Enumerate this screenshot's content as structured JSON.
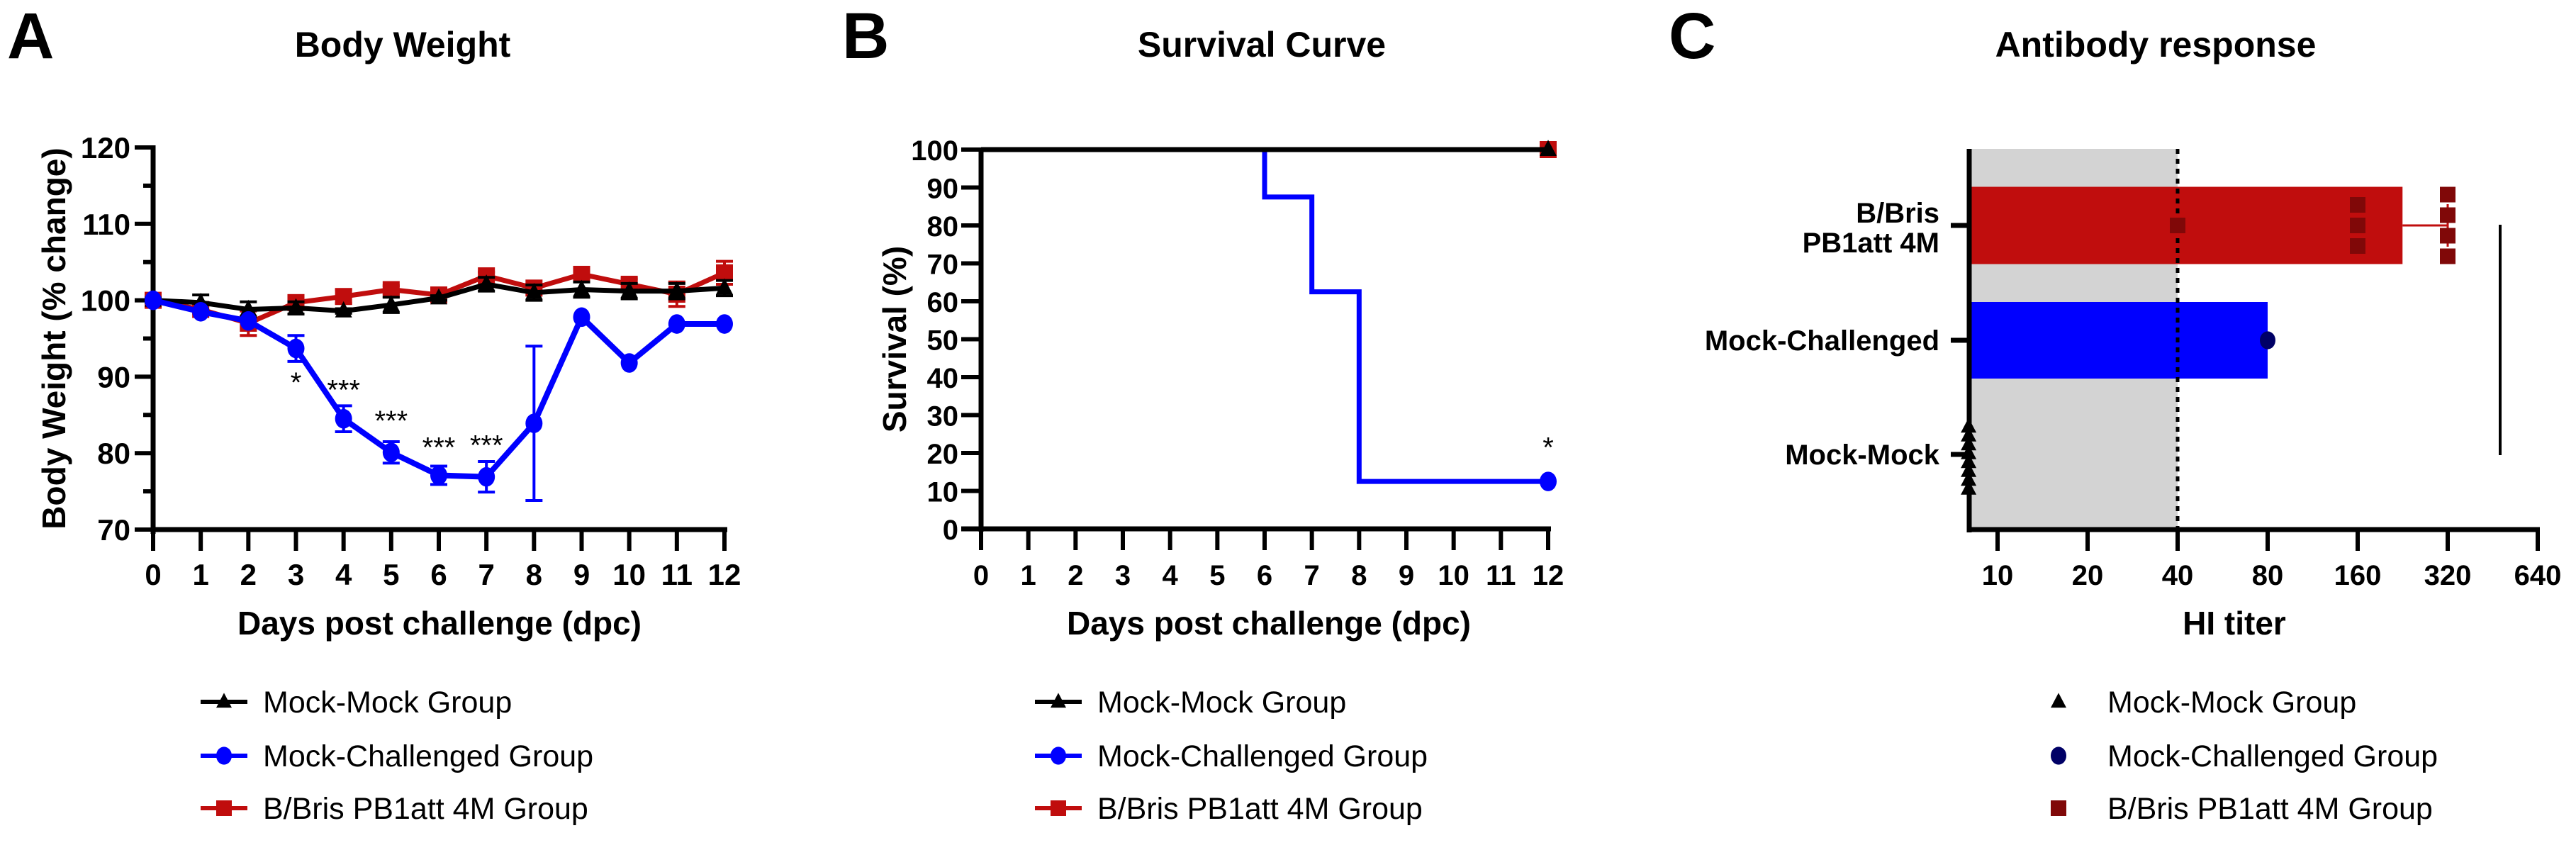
{
  "colors": {
    "mock_mock": "#000000",
    "mock_challenged": "#0000FF",
    "bbris": "#C00D0D",
    "bbris_points": "#800808",
    "mock_challenged_point": "#000066",
    "shade": "#D3D3D3"
  },
  "chart_data": [
    {
      "panel": "A",
      "type": "line",
      "title": "Body Weight",
      "xlabel": "Days post challenge (dpc)",
      "ylabel": "Body Weight (% change)",
      "xlim": [
        0,
        12
      ],
      "ylim": [
        70,
        120
      ],
      "xticks": [
        0,
        1,
        2,
        3,
        4,
        5,
        6,
        7,
        8,
        9,
        10,
        11,
        12
      ],
      "yticks": [
        70,
        80,
        90,
        100,
        110,
        120
      ],
      "x": [
        0,
        1,
        2,
        3,
        4,
        5,
        6,
        7,
        8,
        9,
        10,
        11,
        12
      ],
      "series": [
        {
          "name": "Mock-Mock Group",
          "color": "#000000",
          "marker": "triangle",
          "values": [
            100,
            99.7,
            98.8,
            99.0,
            98.6,
            99.4,
            100.3,
            102.1,
            101.0,
            101.4,
            101.2,
            101.2,
            101.6
          ],
          "errors": [
            0.3,
            1.0,
            1.0,
            0.8,
            0.3,
            1.0,
            0.3,
            0.9,
            1.0,
            1.0,
            1.0,
            1.0,
            1.0
          ]
        },
        {
          "name": "Mock-Challenged Group",
          "color": "#0000FF",
          "marker": "circle",
          "values": [
            100,
            98.5,
            97.3,
            93.7,
            84.5,
            80.1,
            77.1,
            76.9,
            83.9,
            97.8,
            91.8,
            96.9,
            96.9
          ],
          "errors": [
            0,
            0,
            0,
            1.7,
            1.7,
            1.4,
            1.2,
            2.0,
            10.1,
            0,
            0,
            0,
            0
          ]
        },
        {
          "name": "B/Bris PB1att 4M Group",
          "color": "#C00D0D",
          "marker": "square",
          "values": [
            100,
            98.8,
            97.0,
            99.7,
            100.5,
            101.4,
            100.7,
            103.2,
            101.6,
            103.4,
            102.1,
            100.8,
            103.6
          ],
          "errors": [
            0,
            0.5,
            1.6,
            0.9,
            0.9,
            0.5,
            0.5,
            0.5,
            0.5,
            0.5,
            0.7,
            1.6,
            1.5
          ]
        }
      ],
      "annotations": [
        {
          "x": 3,
          "y": 88,
          "text": "*"
        },
        {
          "x": 4,
          "y": 87,
          "text": "***"
        },
        {
          "x": 5,
          "y": 83,
          "text": "***"
        },
        {
          "x": 6,
          "y": 79.5,
          "text": "***"
        },
        {
          "x": 7,
          "y": 79.8,
          "text": "***"
        }
      ]
    },
    {
      "panel": "B",
      "type": "line",
      "title": "Survival Curve",
      "xlabel": "Days post challenge (dpc)",
      "ylabel": "Survival (%)",
      "xlim": [
        0,
        12
      ],
      "ylim": [
        0,
        100
      ],
      "xticks": [
        0,
        1,
        2,
        3,
        4,
        5,
        6,
        7,
        8,
        9,
        10,
        11,
        12
      ],
      "yticks": [
        0,
        10,
        20,
        30,
        40,
        50,
        60,
        70,
        80,
        90,
        100
      ],
      "series": [
        {
          "name": "Mock-Mock Group",
          "color": "#000000",
          "marker": "triangle",
          "steps": [
            [
              0,
              100
            ],
            [
              12,
              100
            ]
          ]
        },
        {
          "name": "Mock-Challenged Group",
          "color": "#0000FF",
          "marker": "circle",
          "steps": [
            [
              0,
              100
            ],
            [
              6,
              87.5
            ],
            [
              7,
              62.5
            ],
            [
              8,
              12.5
            ],
            [
              12,
              12.5
            ]
          ]
        },
        {
          "name": "B/Bris PB1att 4M Group",
          "color": "#C00D0D",
          "marker": "square",
          "steps": [
            [
              0,
              100
            ],
            [
              12,
              100
            ]
          ]
        }
      ],
      "annotations": [
        {
          "x": 12,
          "y": 19,
          "text": "*"
        }
      ]
    },
    {
      "panel": "C",
      "type": "bar",
      "orientation": "horizontal",
      "title": "Antibody response",
      "xlabel": "HI titer",
      "xscale": "log2",
      "xlim": [
        8,
        640
      ],
      "xticks": [
        10,
        20,
        40,
        80,
        160,
        320,
        640
      ],
      "xtick_labels": [
        "10",
        "20",
        "40",
        "80",
        "160",
        "320",
        "640"
      ],
      "detection_limit": 40,
      "categories": [
        "B/Bris\nPB1att 4M",
        "Mock-Challenged",
        "Mock-Mock"
      ],
      "category_lines": [
        [
          "B/Bris",
          "PB1att 4M"
        ],
        [
          "Mock-Challenged"
        ],
        [
          "Mock-Mock"
        ]
      ],
      "values": [
        226,
        80,
        8
      ],
      "points": [
        [
          40,
          160,
          160,
          160,
          320,
          320,
          320,
          320
        ],
        [
          80
        ],
        [
          8,
          8,
          8,
          8,
          8,
          8,
          8,
          8
        ]
      ],
      "error_upper": [
        320,
        null,
        null
      ]
    }
  ],
  "legend": [
    "Mock-Mock Group",
    "Mock-Challenged Group",
    "B/Bris PB1att 4M Group"
  ],
  "panel_letters": [
    "A",
    "B",
    "C"
  ]
}
